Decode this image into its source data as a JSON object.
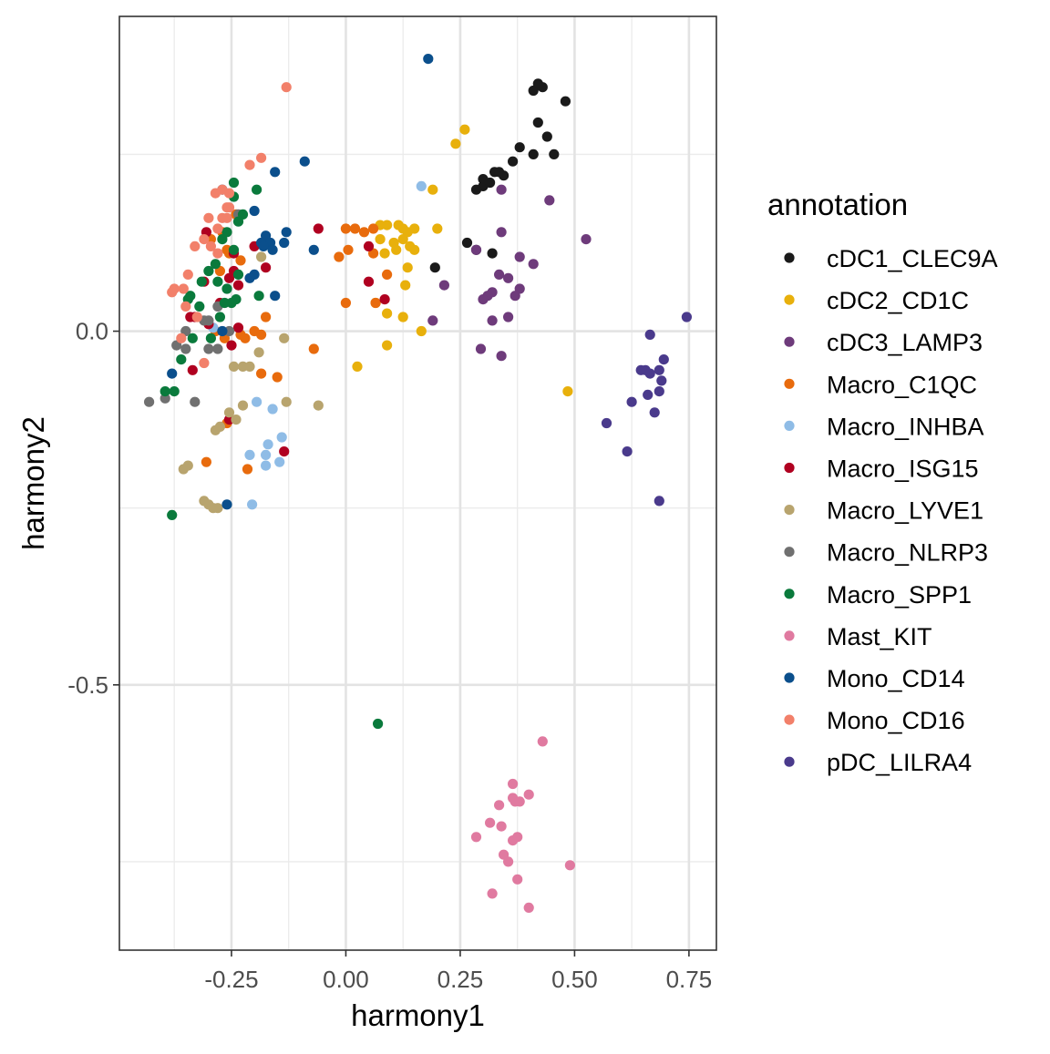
{
  "chart_data": {
    "type": "scatter",
    "title": "",
    "xlabel": "harmony1",
    "ylabel": "harmony2",
    "xlim": [
      -0.495,
      0.81
    ],
    "ylim": [
      -0.875,
      0.445
    ],
    "x_ticks": [
      -0.25,
      0.0,
      0.25,
      0.5,
      0.75
    ],
    "x_tick_labels": [
      "-0.25",
      "0.00",
      "0.25",
      "0.50",
      "0.75"
    ],
    "y_ticks": [
      0.0,
      -0.5
    ],
    "y_tick_labels": [
      "0.0",
      "-0.5"
    ],
    "x_minor_grid": [
      -0.375,
      -0.125,
      0.125,
      0.375,
      0.625
    ],
    "y_minor_grid": [
      0.25,
      -0.25,
      -0.75
    ],
    "grid": true,
    "legend_position": "right",
    "legend_title": "annotation",
    "series": [
      {
        "name": "cDC1_CLEC9A",
        "color": "#1a1a1a",
        "points": [
          [
            0.41,
            0.34
          ],
          [
            0.42,
            0.35
          ],
          [
            0.43,
            0.345
          ],
          [
            0.48,
            0.325
          ],
          [
            0.42,
            0.295
          ],
          [
            0.44,
            0.275
          ],
          [
            0.38,
            0.26
          ],
          [
            0.41,
            0.25
          ],
          [
            0.455,
            0.25
          ],
          [
            0.365,
            0.24
          ],
          [
            0.325,
            0.225
          ],
          [
            0.335,
            0.225
          ],
          [
            0.345,
            0.22
          ],
          [
            0.3,
            0.215
          ],
          [
            0.3,
            0.205
          ],
          [
            0.315,
            0.21
          ],
          [
            0.285,
            0.2
          ],
          [
            0.265,
            0.125
          ],
          [
            0.285,
            0.115
          ],
          [
            0.32,
            0.11
          ],
          [
            0.195,
            0.09
          ]
        ]
      },
      {
        "name": "cDC2_CD1C",
        "color": "#e8b00c",
        "points": [
          [
            0.26,
            0.285
          ],
          [
            0.24,
            0.265
          ],
          [
            0.19,
            0.2
          ],
          [
            0.075,
            0.15
          ],
          [
            0.09,
            0.15
          ],
          [
            0.115,
            0.15
          ],
          [
            0.125,
            0.145
          ],
          [
            0.135,
            0.14
          ],
          [
            0.15,
            0.145
          ],
          [
            0.2,
            0.145
          ],
          [
            0.075,
            0.13
          ],
          [
            0.105,
            0.125
          ],
          [
            0.125,
            0.13
          ],
          [
            0.14,
            0.12
          ],
          [
            0.15,
            0.115
          ],
          [
            0.11,
            0.115
          ],
          [
            0.085,
            0.11
          ],
          [
            0.135,
            0.09
          ],
          [
            0.13,
            0.065
          ],
          [
            0.065,
            0.04
          ],
          [
            0.09,
            0.025
          ],
          [
            0.125,
            0.02
          ],
          [
            0.165,
            0.0
          ],
          [
            0.09,
            -0.02
          ],
          [
            0.025,
            -0.05
          ],
          [
            0.485,
            -0.085
          ]
        ]
      },
      {
        "name": "cDC3_LAMP3",
        "color": "#6e3b7b",
        "points": [
          [
            0.34,
            0.2
          ],
          [
            0.445,
            0.185
          ],
          [
            0.34,
            0.14
          ],
          [
            0.525,
            0.13
          ],
          [
            0.285,
            0.115
          ],
          [
            0.38,
            0.105
          ],
          [
            0.41,
            0.095
          ],
          [
            0.335,
            0.08
          ],
          [
            0.355,
            0.075
          ],
          [
            0.215,
            0.065
          ],
          [
            0.38,
            0.06
          ],
          [
            0.32,
            0.055
          ],
          [
            0.37,
            0.05
          ],
          [
            0.31,
            0.05
          ],
          [
            0.3,
            0.045
          ],
          [
            0.355,
            0.02
          ],
          [
            0.19,
            0.015
          ],
          [
            0.32,
            0.015
          ],
          [
            0.295,
            -0.025
          ],
          [
            0.34,
            -0.035
          ]
        ]
      },
      {
        "name": "Macro_C1QC",
        "color": "#e86b0d",
        "points": [
          [
            -0.24,
            0.165
          ],
          [
            0.0,
            0.145
          ],
          [
            0.02,
            0.145
          ],
          [
            0.06,
            0.145
          ],
          [
            -0.27,
            0.14
          ],
          [
            0.04,
            0.14
          ],
          [
            -0.295,
            0.13
          ],
          [
            -0.26,
            0.115
          ],
          [
            0.005,
            0.115
          ],
          [
            -0.255,
            0.11
          ],
          [
            0.06,
            0.11
          ],
          [
            -0.015,
            0.105
          ],
          [
            -0.23,
            0.1
          ],
          [
            -0.275,
            0.085
          ],
          [
            0.09,
            0.08
          ],
          [
            0.0,
            0.04
          ],
          [
            0.065,
            0.04
          ],
          [
            -0.175,
            0.02
          ],
          [
            -0.285,
            0.0
          ],
          [
            -0.2,
            0.0
          ],
          [
            -0.23,
            -0.005
          ],
          [
            -0.185,
            -0.005
          ],
          [
            -0.265,
            -0.01
          ],
          [
            -0.22,
            -0.01
          ],
          [
            -0.07,
            -0.025
          ],
          [
            -0.185,
            -0.06
          ],
          [
            -0.15,
            -0.065
          ],
          [
            -0.26,
            -0.13
          ],
          [
            -0.305,
            -0.185
          ],
          [
            -0.215,
            -0.195
          ]
        ]
      },
      {
        "name": "Macro_INHBA",
        "color": "#8fbce6",
        "points": [
          [
            0.165,
            0.205
          ],
          [
            -0.29,
            0.005
          ],
          [
            -0.16,
            -0.11
          ],
          [
            -0.195,
            -0.1
          ],
          [
            -0.14,
            -0.15
          ],
          [
            -0.17,
            -0.16
          ],
          [
            -0.21,
            -0.175
          ],
          [
            -0.175,
            -0.175
          ],
          [
            -0.175,
            -0.19
          ],
          [
            -0.145,
            -0.185
          ],
          [
            -0.205,
            -0.245
          ]
        ]
      },
      {
        "name": "Macro_ISG15",
        "color": "#b00020",
        "points": [
          [
            -0.06,
            0.145
          ],
          [
            -0.305,
            0.14
          ],
          [
            -0.2,
            0.12
          ],
          [
            -0.245,
            0.11
          ],
          [
            -0.245,
            0.085
          ],
          [
            0.05,
            0.12
          ],
          [
            -0.175,
            0.09
          ],
          [
            -0.31,
            0.07
          ],
          [
            -0.255,
            0.075
          ],
          [
            -0.235,
            0.065
          ],
          [
            0.05,
            0.07
          ],
          [
            0.085,
            0.045
          ],
          [
            -0.275,
            0.04
          ],
          [
            -0.34,
            0.02
          ],
          [
            -0.3,
            0.01
          ],
          [
            -0.235,
            0.005
          ],
          [
            -0.33,
            0.02
          ],
          [
            -0.25,
            -0.02
          ],
          [
            -0.335,
            -0.055
          ],
          [
            -0.255,
            -0.125
          ],
          [
            -0.135,
            -0.17
          ]
        ]
      },
      {
        "name": "Macro_LYVE1",
        "color": "#b8a46e",
        "points": [
          [
            -0.185,
            0.105
          ],
          [
            -0.135,
            -0.01
          ],
          [
            -0.19,
            -0.03
          ],
          [
            -0.245,
            -0.05
          ],
          [
            -0.225,
            -0.05
          ],
          [
            -0.21,
            -0.05
          ],
          [
            -0.13,
            -0.1
          ],
          [
            -0.06,
            -0.105
          ],
          [
            -0.225,
            -0.105
          ],
          [
            -0.255,
            -0.115
          ],
          [
            -0.24,
            -0.125
          ],
          [
            -0.285,
            -0.14
          ],
          [
            -0.275,
            -0.135
          ],
          [
            -0.355,
            -0.195
          ],
          [
            -0.345,
            -0.19
          ],
          [
            -0.31,
            -0.24
          ],
          [
            -0.3,
            -0.245
          ],
          [
            -0.29,
            -0.25
          ],
          [
            -0.28,
            -0.25
          ]
        ]
      },
      {
        "name": "Macro_NLRP3",
        "color": "#707070",
        "points": [
          [
            -0.235,
            0.165
          ],
          [
            -0.28,
            0.035
          ],
          [
            -0.31,
            0.015
          ],
          [
            -0.3,
            0.015
          ],
          [
            -0.35,
            0.0
          ],
          [
            -0.255,
            0.0
          ],
          [
            -0.37,
            -0.02
          ],
          [
            -0.35,
            -0.025
          ],
          [
            -0.3,
            -0.025
          ],
          [
            -0.28,
            -0.025
          ],
          [
            -0.395,
            -0.095
          ],
          [
            -0.43,
            -0.1
          ],
          [
            -0.33,
            -0.1
          ]
        ]
      },
      {
        "name": "Macro_SPP1",
        "color": "#0a7a3c",
        "points": [
          [
            -0.245,
            0.21
          ],
          [
            -0.195,
            0.2
          ],
          [
            -0.245,
            0.19
          ],
          [
            -0.225,
            0.165
          ],
          [
            -0.235,
            0.155
          ],
          [
            -0.26,
            0.14
          ],
          [
            -0.27,
            0.13
          ],
          [
            -0.245,
            0.115
          ],
          [
            -0.285,
            0.095
          ],
          [
            -0.3,
            0.085
          ],
          [
            -0.235,
            0.08
          ],
          [
            -0.315,
            0.07
          ],
          [
            -0.28,
            0.07
          ],
          [
            -0.26,
            0.06
          ],
          [
            -0.19,
            0.05
          ],
          [
            -0.34,
            0.05
          ],
          [
            -0.345,
            0.045
          ],
          [
            -0.24,
            0.045
          ],
          [
            -0.25,
            0.04
          ],
          [
            -0.265,
            0.04
          ],
          [
            -0.32,
            0.035
          ],
          [
            -0.275,
            0.02
          ],
          [
            -0.295,
            -0.01
          ],
          [
            -0.335,
            -0.01
          ],
          [
            -0.36,
            -0.04
          ],
          [
            -0.375,
            -0.085
          ],
          [
            -0.395,
            -0.085
          ],
          [
            -0.38,
            -0.26
          ],
          [
            0.07,
            -0.555
          ]
        ]
      },
      {
        "name": "Mast_KIT",
        "color": "#e07aa0",
        "points": [
          [
            0.43,
            -0.58
          ],
          [
            0.365,
            -0.64
          ],
          [
            0.4,
            -0.655
          ],
          [
            0.38,
            -0.665
          ],
          [
            0.37,
            -0.665
          ],
          [
            0.365,
            -0.66
          ],
          [
            0.335,
            -0.67
          ],
          [
            0.315,
            -0.695
          ],
          [
            0.34,
            -0.7
          ],
          [
            0.285,
            -0.715
          ],
          [
            0.365,
            -0.72
          ],
          [
            0.375,
            -0.715
          ],
          [
            0.345,
            -0.74
          ],
          [
            0.355,
            -0.75
          ],
          [
            0.49,
            -0.755
          ],
          [
            0.375,
            -0.775
          ],
          [
            0.32,
            -0.795
          ],
          [
            0.4,
            -0.815
          ]
        ]
      },
      {
        "name": "Mono_CD14",
        "color": "#0b4f8c",
        "points": [
          [
            0.18,
            0.385
          ],
          [
            -0.09,
            0.24
          ],
          [
            -0.155,
            0.225
          ],
          [
            -0.27,
            0.2
          ],
          [
            -0.2,
            0.17
          ],
          [
            -0.13,
            0.14
          ],
          [
            -0.175,
            0.135
          ],
          [
            -0.185,
            0.125
          ],
          [
            -0.165,
            0.125
          ],
          [
            -0.135,
            0.125
          ],
          [
            -0.16,
            0.115
          ],
          [
            -0.18,
            0.12
          ],
          [
            -0.07,
            0.115
          ],
          [
            -0.2,
            0.08
          ],
          [
            -0.21,
            0.075
          ],
          [
            -0.155,
            0.05
          ],
          [
            -0.27,
            0.0
          ],
          [
            -0.38,
            -0.06
          ],
          [
            -0.26,
            -0.245
          ]
        ]
      },
      {
        "name": "Mono_CD16",
        "color": "#f2806a",
        "points": [
          [
            -0.13,
            0.345
          ],
          [
            -0.185,
            0.245
          ],
          [
            -0.21,
            0.235
          ],
          [
            -0.27,
            0.2
          ],
          [
            -0.255,
            0.195
          ],
          [
            -0.285,
            0.195
          ],
          [
            -0.255,
            0.175
          ],
          [
            -0.26,
            0.175
          ],
          [
            -0.27,
            0.16
          ],
          [
            -0.3,
            0.16
          ],
          [
            -0.26,
            0.16
          ],
          [
            -0.28,
            0.145
          ],
          [
            -0.31,
            0.13
          ],
          [
            -0.295,
            0.12
          ],
          [
            -0.33,
            0.12
          ],
          [
            -0.28,
            0.11
          ],
          [
            -0.345,
            0.08
          ],
          [
            -0.355,
            0.06
          ],
          [
            -0.375,
            0.06
          ],
          [
            -0.38,
            0.055
          ],
          [
            -0.35,
            0.035
          ],
          [
            -0.325,
            0.02
          ],
          [
            -0.36,
            -0.01
          ],
          [
            -0.31,
            -0.045
          ]
        ]
      },
      {
        "name": "pDC_LILRA4",
        "color": "#4a3a8c",
        "points": [
          [
            0.745,
            0.02
          ],
          [
            0.665,
            -0.005
          ],
          [
            0.695,
            -0.04
          ],
          [
            0.645,
            -0.055
          ],
          [
            0.655,
            -0.055
          ],
          [
            0.665,
            -0.06
          ],
          [
            0.685,
            -0.055
          ],
          [
            0.69,
            -0.07
          ],
          [
            0.685,
            -0.085
          ],
          [
            0.66,
            -0.09
          ],
          [
            0.625,
            -0.1
          ],
          [
            0.675,
            -0.115
          ],
          [
            0.57,
            -0.13
          ],
          [
            0.615,
            -0.17
          ],
          [
            0.685,
            -0.24
          ]
        ]
      }
    ]
  }
}
